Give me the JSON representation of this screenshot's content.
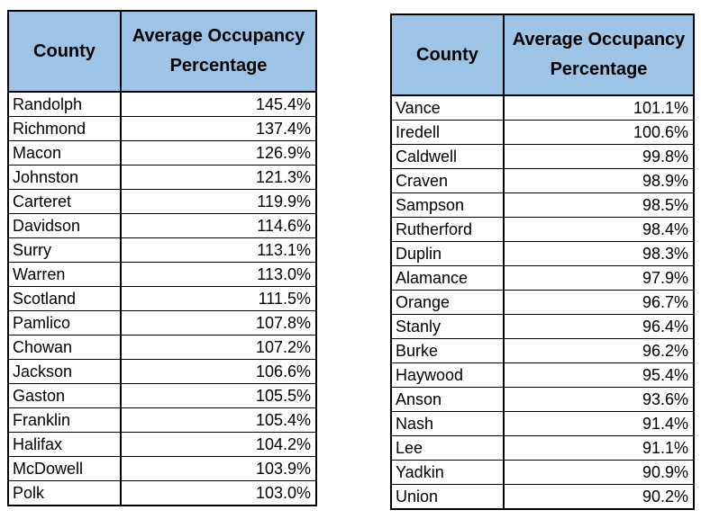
{
  "colors": {
    "header_bg": "#9DC3E6",
    "border": "#000000",
    "text": "#000000",
    "page_bg": "#FFFFFF"
  },
  "chart_data": [
    {
      "type": "table",
      "title": "",
      "columns": [
        "County",
        "Average Occupancy Percentage"
      ],
      "rows": [
        [
          "Randolph",
          "145.4%"
        ],
        [
          "Richmond",
          "137.4%"
        ],
        [
          "Macon",
          "126.9%"
        ],
        [
          "Johnston",
          "121.3%"
        ],
        [
          "Carteret",
          "119.9%"
        ],
        [
          "Davidson",
          "114.6%"
        ],
        [
          "Surry",
          "113.1%"
        ],
        [
          "Warren",
          "113.0%"
        ],
        [
          "Scotland",
          "111.5%"
        ],
        [
          "Pamlico",
          "107.8%"
        ],
        [
          "Chowan",
          "107.2%"
        ],
        [
          "Jackson",
          "106.6%"
        ],
        [
          "Gaston",
          "105.5%"
        ],
        [
          "Franklin",
          "105.4%"
        ],
        [
          "Halifax",
          "104.2%"
        ],
        [
          "McDowell",
          "103.9%"
        ],
        [
          "Polk",
          "103.0%"
        ]
      ]
    },
    {
      "type": "table",
      "title": "",
      "columns": [
        "County",
        "Average Occupancy Percentage"
      ],
      "rows": [
        [
          "Vance",
          "101.1%"
        ],
        [
          "Iredell",
          "100.6%"
        ],
        [
          "Caldwell",
          "99.8%"
        ],
        [
          "Craven",
          "98.9%"
        ],
        [
          "Sampson",
          "98.5%"
        ],
        [
          "Rutherford",
          "98.4%"
        ],
        [
          "Duplin",
          "98.3%"
        ],
        [
          "Alamance",
          "97.9%"
        ],
        [
          "Orange",
          "96.7%"
        ],
        [
          "Stanly",
          "96.4%"
        ],
        [
          "Burke",
          "96.2%"
        ],
        [
          "Haywood",
          "95.4%"
        ],
        [
          "Anson",
          "93.6%"
        ],
        [
          "Nash",
          "91.4%"
        ],
        [
          "Lee",
          "91.1%"
        ],
        [
          "Yadkin",
          "90.9%"
        ],
        [
          "Union",
          "90.2%"
        ]
      ]
    }
  ]
}
